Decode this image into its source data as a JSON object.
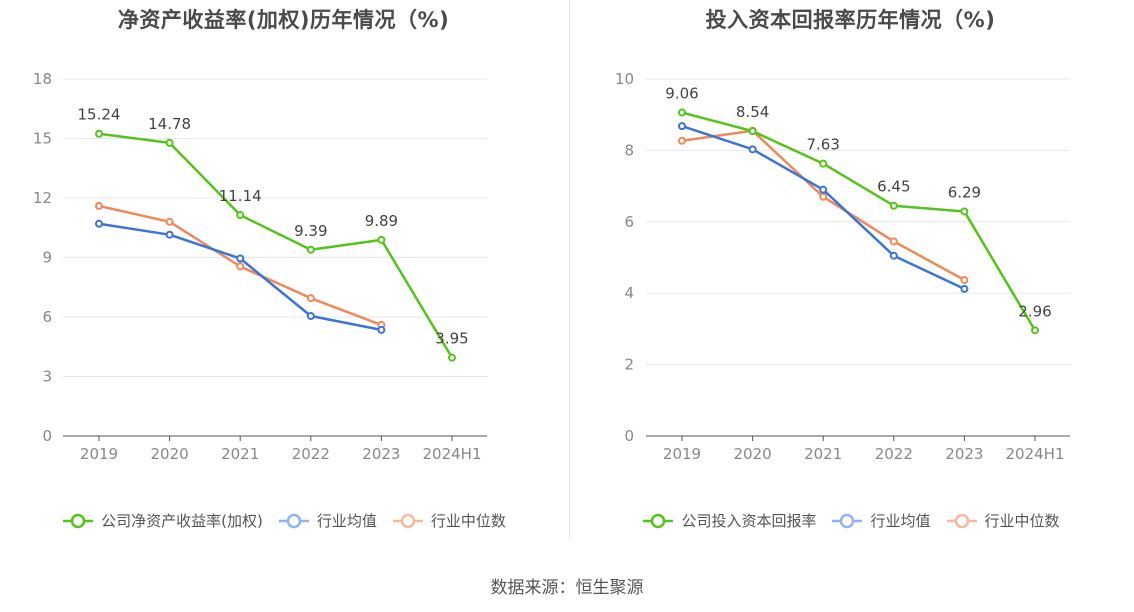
{
  "chart_data": [
    {
      "type": "line",
      "title": "净资产收益率(加权)历年情况（%)",
      "categories": [
        "2019",
        "2020",
        "2021",
        "2022",
        "2023",
        "2024H1"
      ],
      "ylim": [
        0,
        18
      ],
      "yticks": [
        0,
        3,
        6,
        9,
        12,
        15,
        18
      ],
      "grid": true,
      "legend": "bottom",
      "series": [
        {
          "name": "公司净资产收益率(加权)",
          "color": "#52c41a",
          "values": [
            15.24,
            14.78,
            11.14,
            9.39,
            9.89,
            3.95
          ],
          "labels": [
            "15.24",
            "14.78",
            "11.14",
            "9.39",
            "9.89",
            "3.95"
          ]
        },
        {
          "name": "行业均值",
          "color": "#3b73d6",
          "values": [
            10.7,
            10.15,
            8.95,
            6.05,
            5.35,
            null
          ]
        },
        {
          "name": "行业中位数",
          "color": "#f0885a",
          "values": [
            11.6,
            10.8,
            8.55,
            6.95,
            5.6,
            null
          ]
        }
      ]
    },
    {
      "type": "line",
      "title": "投入资本回报率历年情况（%)",
      "categories": [
        "2019",
        "2020",
        "2021",
        "2022",
        "2023",
        "2024H1"
      ],
      "ylim": [
        0,
        10
      ],
      "yticks": [
        0,
        2,
        4,
        6,
        8,
        10
      ],
      "grid": true,
      "legend": "bottom",
      "series": [
        {
          "name": "公司投入资本回报率",
          "color": "#52c41a",
          "values": [
            9.06,
            8.54,
            7.63,
            6.45,
            6.29,
            2.96
          ],
          "labels": [
            "9.06",
            "8.54",
            "7.63",
            "6.45",
            "6.29",
            "2.96"
          ]
        },
        {
          "name": "行业均值",
          "color": "#3b73d6",
          "values": [
            8.68,
            8.03,
            6.9,
            5.05,
            4.12,
            null
          ]
        },
        {
          "name": "行业中位数",
          "color": "#f0885a",
          "values": [
            8.27,
            8.55,
            6.7,
            5.45,
            4.37,
            null
          ]
        }
      ]
    }
  ],
  "legend_colors": {
    "company": "#52c41a",
    "mean": "#8fb3f0",
    "median": "#f7b79b"
  },
  "source": "数据来源：恒生聚源"
}
